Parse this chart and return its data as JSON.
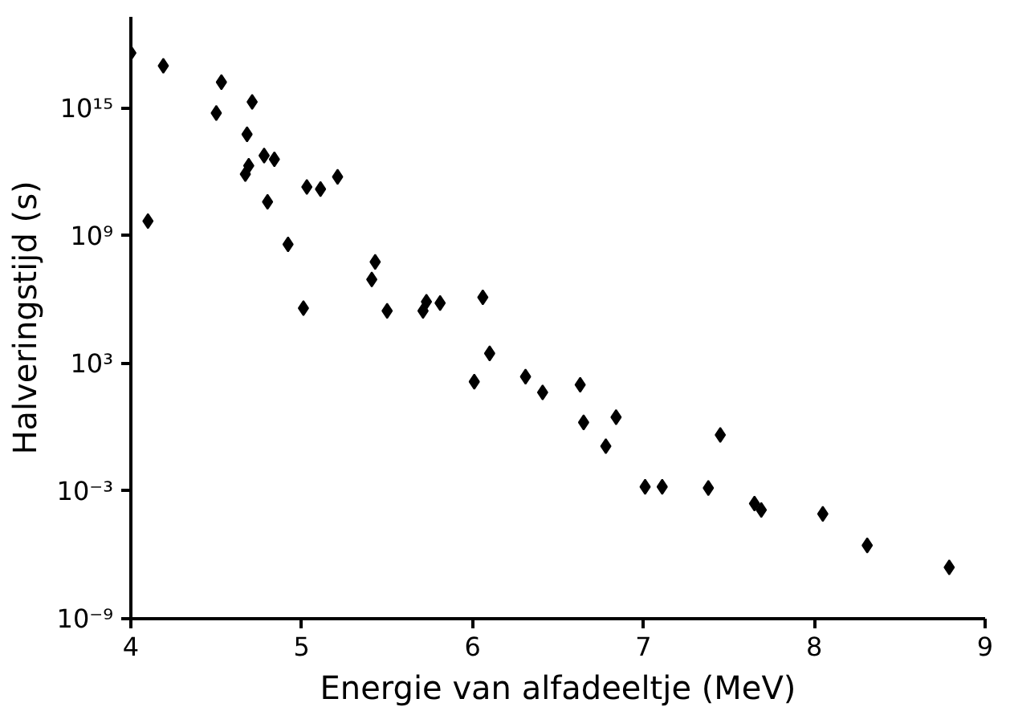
{
  "chart_data": {
    "type": "scatter",
    "xlabel": "Energie van alfadeeltje (MeV)",
    "ylabel": "Halveringstijd (s)",
    "log": "y",
    "marker": "diamond",
    "grid": false,
    "xlim": [
      4,
      9
    ],
    "xticks": [
      4,
      5,
      6,
      7,
      8,
      9
    ],
    "ylim": [
      1e-09,
      2e+19
    ],
    "yticks": [
      {
        "value": 1e-09,
        "label": "10⁻⁹"
      },
      {
        "value": 0.001,
        "label": "10⁻³"
      },
      {
        "value": 1000,
        "label": "10³"
      },
      {
        "value": 1000000000.0,
        "label": "10⁹"
      },
      {
        "value": 1000000000000000.0,
        "label": "10¹⁵"
      }
    ],
    "series": [
      {
        "color": "#000000",
        "x": [
          4.0,
          4.19,
          4.53,
          4.71,
          4.5,
          4.68,
          4.78,
          4.84,
          4.69,
          4.67,
          4.8,
          5.21,
          5.03,
          5.11,
          4.1,
          4.92,
          5.43,
          5.41,
          5.01,
          5.5,
          5.71,
          5.73,
          5.81,
          6.06,
          6.1,
          6.01,
          6.31,
          6.41,
          6.63,
          6.65,
          6.84,
          6.78,
          7.45,
          7.01,
          7.11,
          7.38,
          7.65,
          7.69,
          8.05,
          8.31,
          8.79
        ],
        "values": [
          4e+17,
          1e+17,
          1.7e+16,
          2000000000000000.0,
          600000000000000.0,
          60000000000000.0,
          6000000000000.0,
          4000000000000.0,
          2000000000000.0,
          800000000000.0,
          40000000000.0,
          600000000000.0,
          200000000000.0,
          160000000000.0,
          5000000000.0,
          400000000.0,
          60000000.0,
          9000000.0,
          400000.0,
          300000.0,
          300000.0,
          800000.0,
          700000.0,
          1300000.0,
          3000,
          140,
          240,
          44,
          100,
          1.7,
          3,
          0.13,
          0.44,
          0.0016,
          0.0016,
          0.0014,
          0.00026,
          0.00013,
          8.5e-05,
          2.8e-06,
          2.6e-07
        ]
      }
    ]
  }
}
